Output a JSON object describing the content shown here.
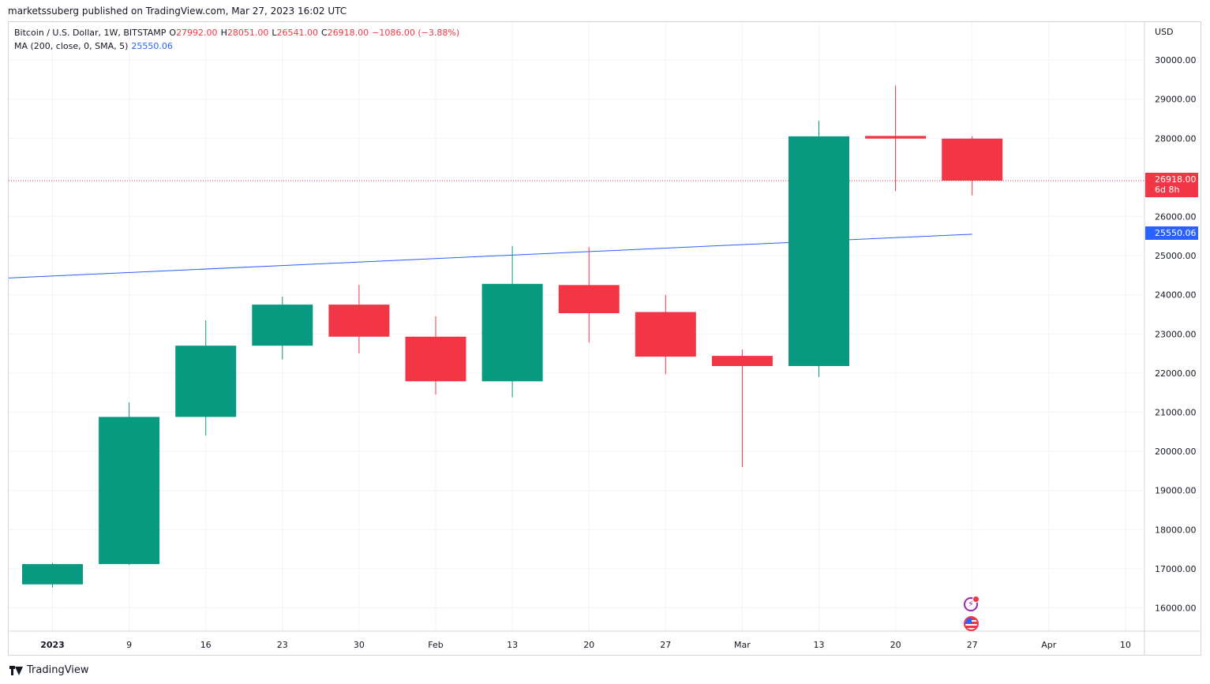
{
  "byline": "marketssuberg published on TradingView.com, Mar 27, 2023 16:02 UTC",
  "legend": {
    "symbol": "Bitcoin / U.S. Dollar, 1W, BITSTAMP",
    "o_label": "O",
    "o_value": "27992.00",
    "h_label": "H",
    "h_value": "28051.00",
    "l_label": "L",
    "l_value": "26541.00",
    "c_label": "C",
    "c_value": "26918.00",
    "change": "−1086.00 (−3.88%)",
    "ma_label": "MA (200, close, 0, SMA, 5)",
    "ma_value": "25550.06"
  },
  "currency": "USD",
  "price_badge": {
    "price": "26918.00",
    "countdown": "6d 8h"
  },
  "ma_badge": "25550.06",
  "brand": "TradingView",
  "icons": [
    "lightning-icon",
    "us-flag-icon",
    "tradingview-logo-icon"
  ],
  "colors": {
    "up": "#089981",
    "down": "#f23645",
    "ma": "#2962ff",
    "grid": "#f0f3fa"
  },
  "chart_data": {
    "type": "candlestick",
    "y_ticks": [
      "16000.00",
      "17000.00",
      "18000.00",
      "19000.00",
      "20000.00",
      "21000.00",
      "22000.00",
      "23000.00",
      "24000.00",
      "25000.00",
      "26000.00",
      "27000.00",
      "28000.00",
      "29000.00",
      "30000.00"
    ],
    "x_ticks": [
      "2023",
      "9",
      "16",
      "23",
      "30",
      "Feb",
      "13",
      "20",
      "27",
      "Mar",
      "13",
      "20",
      "27",
      "Apr",
      "10"
    ],
    "ylim": [
      15500,
      30500
    ],
    "grid": true,
    "candles": [
      {
        "x": "2023",
        "open": 16600,
        "high": 17150,
        "low": 16520,
        "close": 17120
      },
      {
        "x": "9",
        "open": 17120,
        "high": 21250,
        "low": 17100,
        "close": 20880
      },
      {
        "x": "16",
        "open": 20880,
        "high": 23350,
        "low": 20400,
        "close": 22700
      },
      {
        "x": "23",
        "open": 22700,
        "high": 23950,
        "low": 22350,
        "close": 23750
      },
      {
        "x": "30",
        "open": 23750,
        "high": 24250,
        "low": 22500,
        "close": 22930
      },
      {
        "x": "Feb",
        "open": 22930,
        "high": 23450,
        "low": 21450,
        "close": 21790
      },
      {
        "x": "13",
        "open": 21790,
        "high": 25250,
        "low": 21380,
        "close": 24280
      },
      {
        "x": "20",
        "open": 24250,
        "high": 25220,
        "low": 22780,
        "close": 23530
      },
      {
        "x": "27",
        "open": 23560,
        "high": 24000,
        "low": 21970,
        "close": 22420
      },
      {
        "x": "Mar",
        "open": 22440,
        "high": 22600,
        "low": 19600,
        "close": 22180
      },
      {
        "x": "13",
        "open": 22180,
        "high": 28450,
        "low": 21900,
        "close": 28050
      },
      {
        "x": "20",
        "open": 28060,
        "high": 29350,
        "low": 26650,
        "close": 27992
      },
      {
        "x": "27",
        "open": 27992,
        "high": 28051,
        "low": 26541,
        "close": 26918
      }
    ],
    "ma_line": {
      "name": "MA (200, close, 0, SMA, 5)",
      "start": 24430,
      "end": 25550.06
    },
    "last_price": 26918
  }
}
